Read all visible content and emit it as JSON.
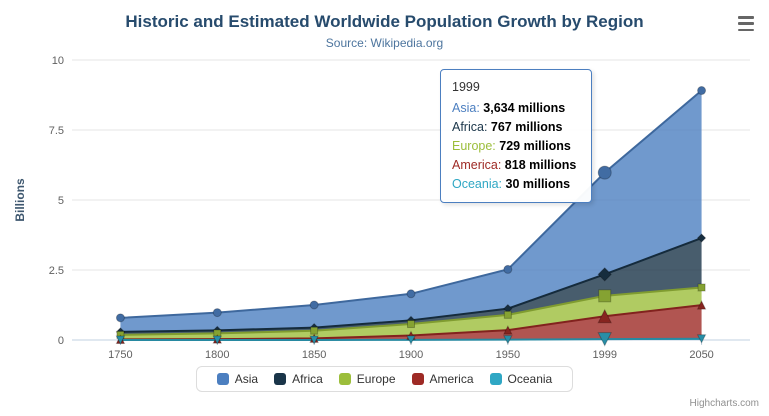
{
  "chart": {
    "title": "Historic and Estimated Worldwide Population Growth by Region",
    "subtitle": "Source: Wikipedia.org",
    "y_axis_title": "Billions",
    "credits": "Highcharts.com",
    "menu_icon": "hamburger-icon",
    "accent_color": "#4C7FC0"
  },
  "chart_data": {
    "type": "area",
    "stacking": "normal",
    "categories": [
      "1750",
      "1800",
      "1850",
      "1900",
      "1950",
      "1999",
      "2050"
    ],
    "unit": "millions",
    "title": "Historic and Estimated Worldwide Population Growth by Region",
    "subtitle": "Source: Wikipedia.org",
    "xlabel": "",
    "ylabel": "Billions",
    "ylim": [
      0,
      10
    ],
    "yticks": [
      0,
      2.5,
      5,
      7.5,
      10
    ],
    "grid": "horizontal",
    "legend_position": "bottom",
    "series": [
      {
        "name": "Asia",
        "color": "#4C7FC0",
        "marker": "circle",
        "values": [
          502,
          635,
          809,
          947,
          1402,
          3634,
          5268
        ]
      },
      {
        "name": "Africa",
        "color": "#1A3549",
        "marker": "diamond",
        "values": [
          106,
          107,
          111,
          133,
          221,
          767,
          1766
        ]
      },
      {
        "name": "Europe",
        "color": "#9CBE3B",
        "marker": "square",
        "values": [
          163,
          203,
          276,
          408,
          547,
          729,
          628
        ]
      },
      {
        "name": "America",
        "color": "#9E2A25",
        "marker": "triangle",
        "values": [
          18,
          31,
          54,
          156,
          339,
          818,
          1201
        ]
      },
      {
        "name": "Oceania",
        "color": "#2FA7C4",
        "marker": "triangle-down",
        "values": [
          2,
          2,
          2,
          6,
          13,
          30,
          46
        ]
      }
    ]
  },
  "tooltip": {
    "header": "1999",
    "hovered_category": "1999",
    "rows": [
      {
        "name": "Asia",
        "value": "3,634 millions"
      },
      {
        "name": "Africa",
        "value": "767 millions"
      },
      {
        "name": "Europe",
        "value": "729 millions"
      },
      {
        "name": "America",
        "value": "818 millions"
      },
      {
        "name": "Oceania",
        "value": "30 millions"
      }
    ]
  }
}
